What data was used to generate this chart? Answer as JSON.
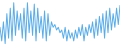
{
  "values": [
    18,
    8,
    22,
    6,
    28,
    10,
    32,
    8,
    36,
    12,
    30,
    16,
    28,
    10,
    32,
    8,
    36,
    14,
    30,
    12,
    35,
    8,
    32,
    14,
    26,
    10,
    30,
    8,
    28,
    12,
    22,
    18,
    20,
    16,
    18,
    14,
    16,
    10,
    18,
    8,
    16,
    10,
    14,
    8,
    16,
    10,
    18,
    12,
    20,
    8,
    18,
    12,
    20,
    14,
    22,
    10,
    24,
    12,
    26,
    14,
    28,
    10,
    30,
    14,
    32,
    16,
    28,
    18,
    32,
    20,
    34
  ],
  "line_color": "#5aace8",
  "background_color": "#ffffff",
  "linewidth": 0.7
}
